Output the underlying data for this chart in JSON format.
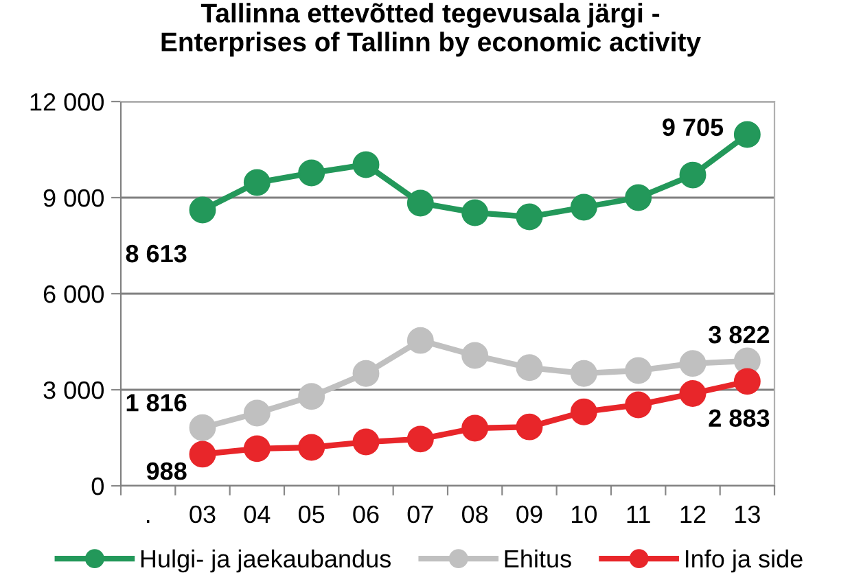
{
  "chart_data": {
    "type": "line",
    "title": "Tallinna ettevõtted tegevusala järgi -\nEnterprises of Tallinn by economic activity",
    "categories": [
      ".",
      "03",
      "04",
      "05",
      "06",
      "07",
      "08",
      "09",
      "10",
      "11",
      "12",
      "13"
    ],
    "series": [
      {
        "name": "Hulgi- ja jaekaubandus",
        "color": "#23985a",
        "values": [
          null,
          8613,
          9470,
          9770,
          10030,
          8830,
          8530,
          8400,
          8700,
          9000,
          9705,
          10970
        ],
        "value_labels": [
          null,
          "8 613",
          null,
          null,
          null,
          null,
          null,
          null,
          null,
          null,
          "9 705",
          null
        ]
      },
      {
        "name": "Ehitus",
        "color": "#c0c0c0",
        "values": [
          null,
          1816,
          2270,
          2790,
          3510,
          4540,
          4070,
          3690,
          3510,
          3600,
          3822,
          3900
        ],
        "value_labels": [
          null,
          "1 816",
          null,
          null,
          null,
          null,
          null,
          null,
          null,
          null,
          "3 822",
          null
        ]
      },
      {
        "name": "Info ja side",
        "color": "#e8262a",
        "values": [
          null,
          988,
          1160,
          1200,
          1370,
          1460,
          1800,
          1840,
          2310,
          2530,
          2883,
          3260
        ],
        "value_labels": [
          null,
          "988",
          null,
          null,
          null,
          null,
          null,
          null,
          null,
          null,
          "2 883",
          null
        ]
      }
    ],
    "ylim": [
      0,
      12000
    ],
    "yticks": [
      {
        "value": 0,
        "label": "0"
      },
      {
        "value": 3000,
        "label": "3 000"
      },
      {
        "value": 6000,
        "label": "6 000"
      },
      {
        "value": 9000,
        "label": "9 000"
      },
      {
        "value": 12000,
        "label": "12 000"
      }
    ],
    "grid": "y",
    "legend": "bottom",
    "marker": "circle",
    "line_style": "solid"
  }
}
